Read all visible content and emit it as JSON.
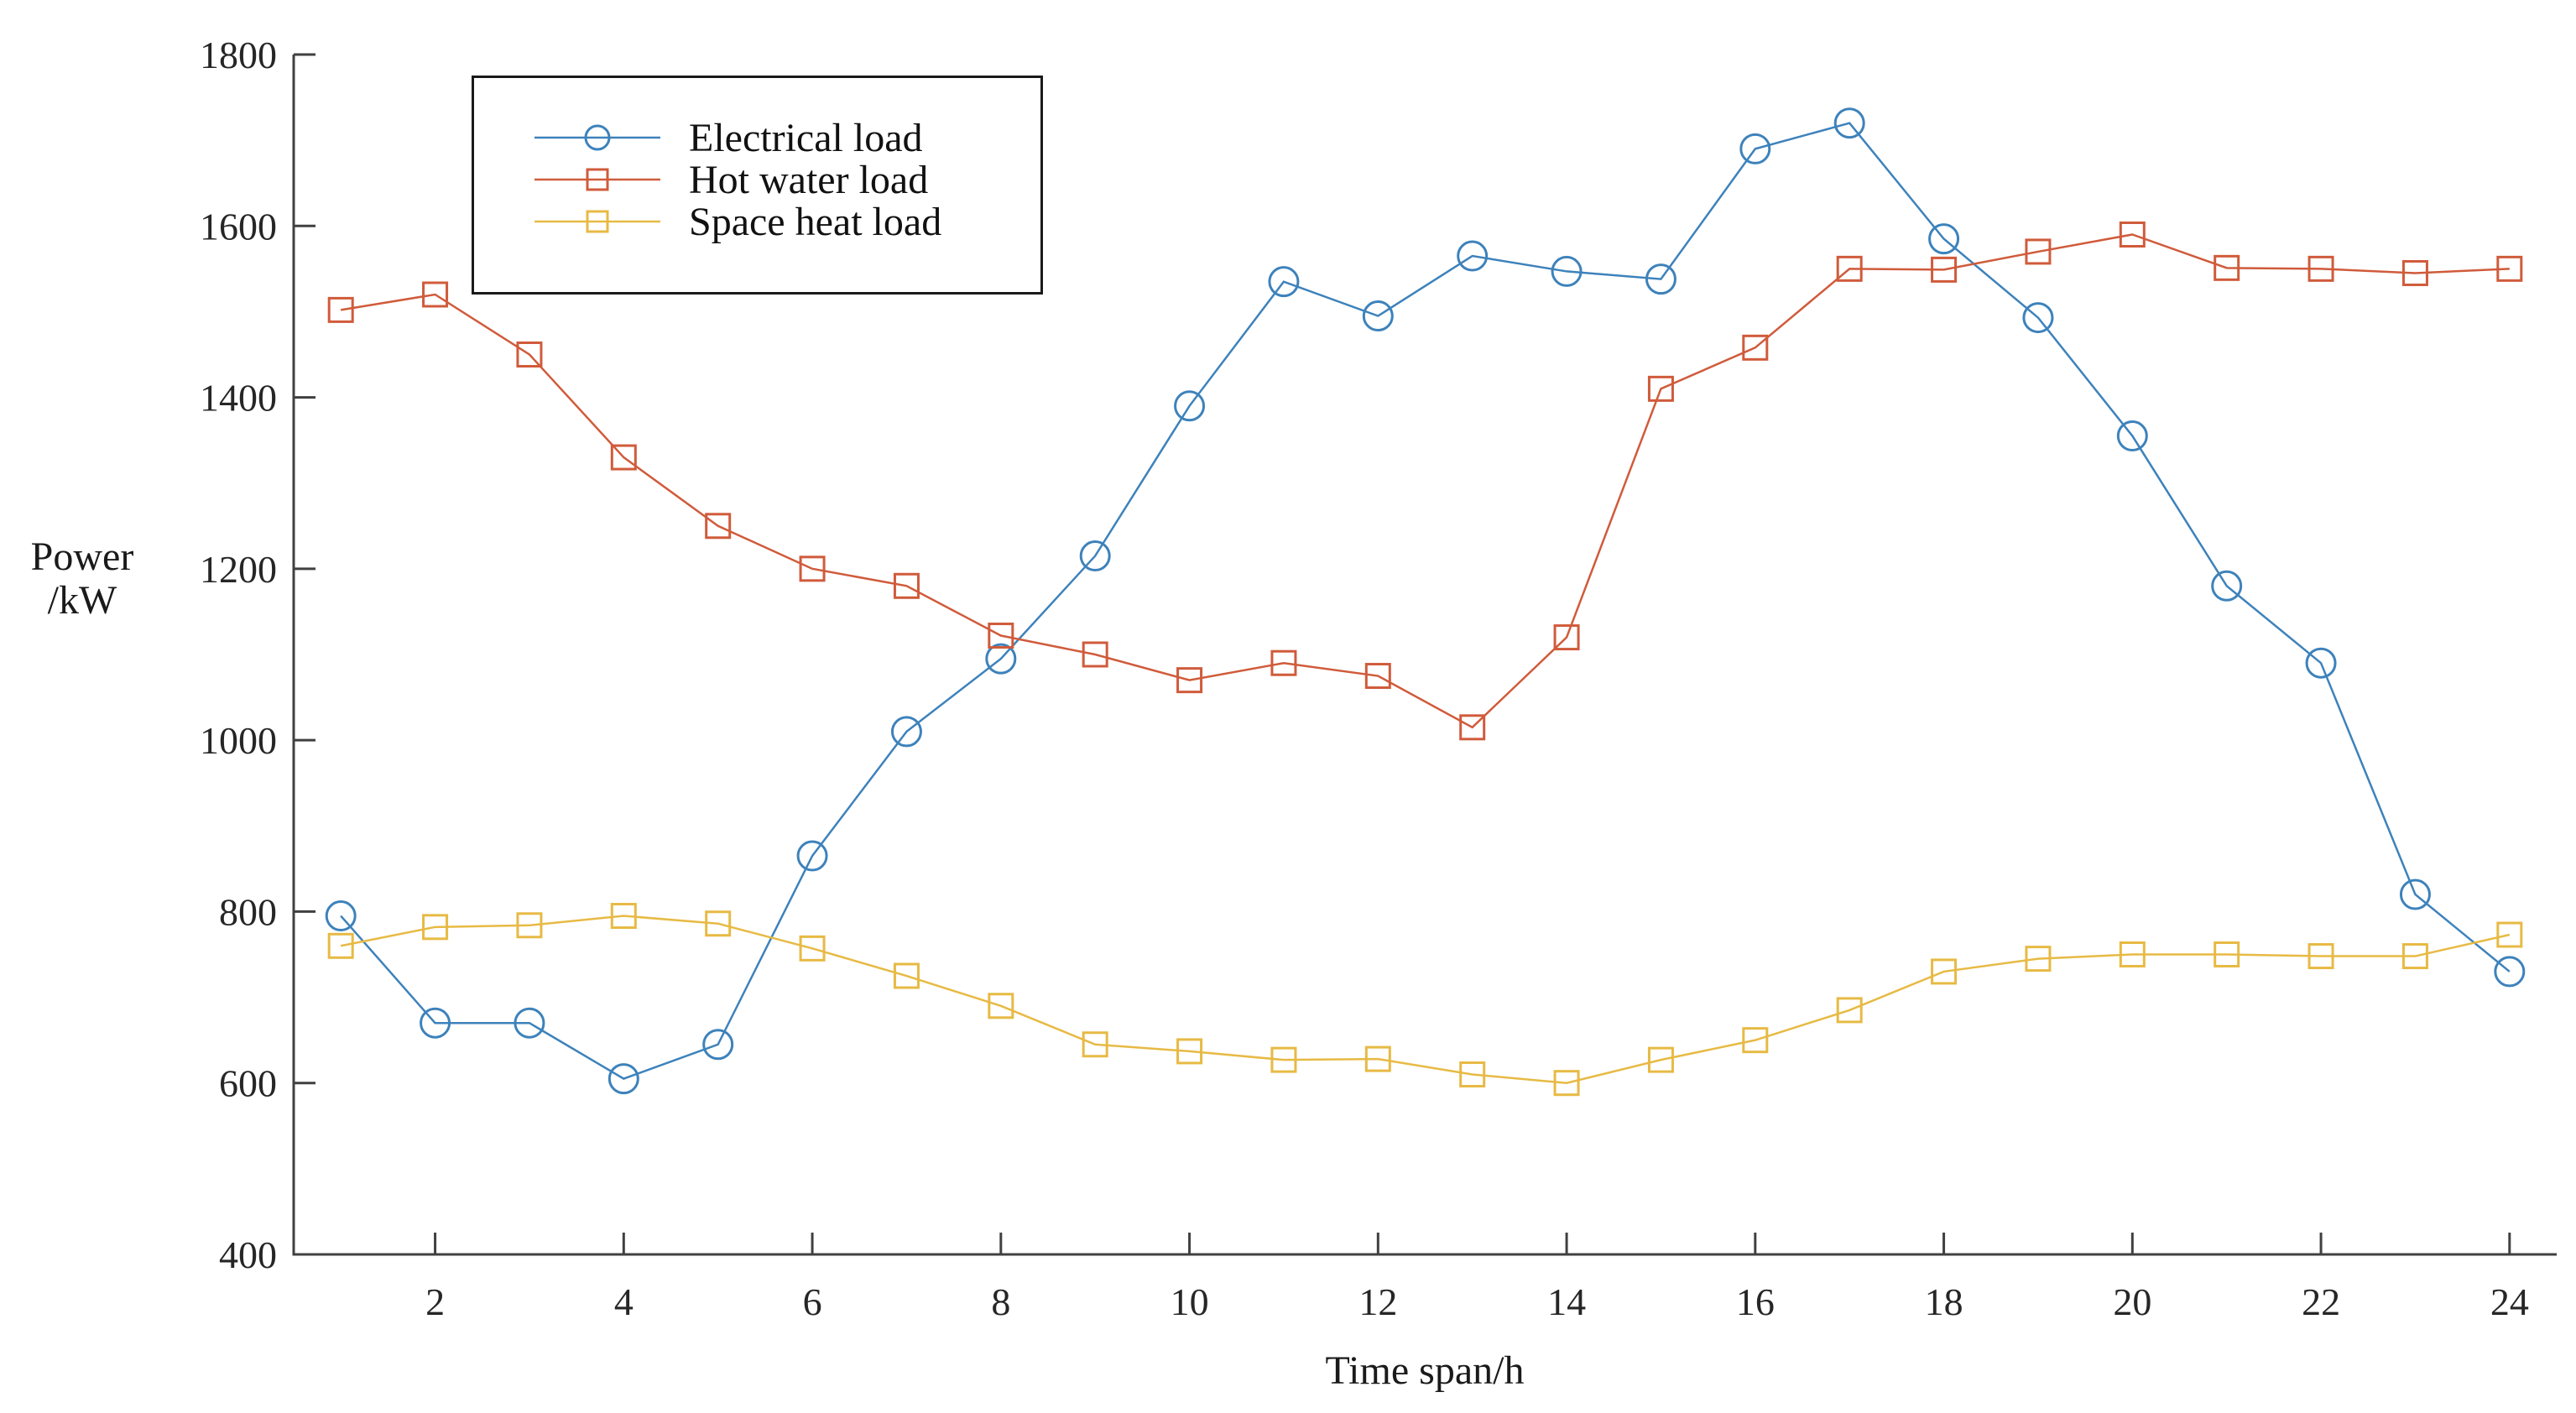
{
  "axis": {
    "color": "#404040",
    "text_color": "#262626",
    "y_title_line1": "Power",
    "y_title_line2": "/kW",
    "x_title": "Time span/h",
    "x_ticks": [
      2,
      4,
      6,
      8,
      10,
      12,
      14,
      16,
      18,
      20,
      22,
      24
    ],
    "y_ticks": [
      400,
      600,
      800,
      1000,
      1200,
      1400,
      1600,
      1800
    ]
  },
  "legend": {
    "position": "upper-left-inside",
    "border_color": "#1a1a1a"
  },
  "chart_data": {
    "type": "line",
    "title": "",
    "xlabel": "Time span/h",
    "ylabel": "Power /kW",
    "xlim": [
      0.5,
      24.5
    ],
    "ylim": [
      400,
      1800
    ],
    "grid": false,
    "legend_position": "upper-left-inside",
    "x": [
      1,
      2,
      3,
      4,
      5,
      6,
      7,
      8,
      9,
      10,
      11,
      12,
      13,
      14,
      15,
      16,
      17,
      18,
      19,
      20,
      21,
      22,
      23,
      24
    ],
    "series": [
      {
        "name": "Electrical load",
        "color": "#3d82bb",
        "marker": "circle",
        "values": [
          795,
          670,
          670,
          605,
          645,
          865,
          1010,
          1095,
          1215,
          1390,
          1535,
          1495,
          1565,
          1547,
          1538,
          1690,
          1720,
          1585,
          1493,
          1355,
          1180,
          1090,
          820,
          730
        ]
      },
      {
        "name": "Hot water load",
        "color": "#d05b3b",
        "marker": "square",
        "values": [
          1502,
          1520,
          1450,
          1330,
          1250,
          1200,
          1180,
          1122,
          1100,
          1070,
          1090,
          1075,
          1015,
          1120,
          1410,
          1458,
          1550,
          1549,
          1570,
          1590,
          1551,
          1550,
          1545,
          1550
        ]
      },
      {
        "name": "Space heat load",
        "color": "#e7ba44",
        "marker": "square",
        "values": [
          760,
          782,
          784,
          795,
          786,
          757,
          725,
          690,
          645,
          637,
          627,
          628,
          610,
          600,
          627,
          650,
          685,
          730,
          745,
          750,
          750,
          748,
          748,
          773
        ]
      }
    ]
  }
}
